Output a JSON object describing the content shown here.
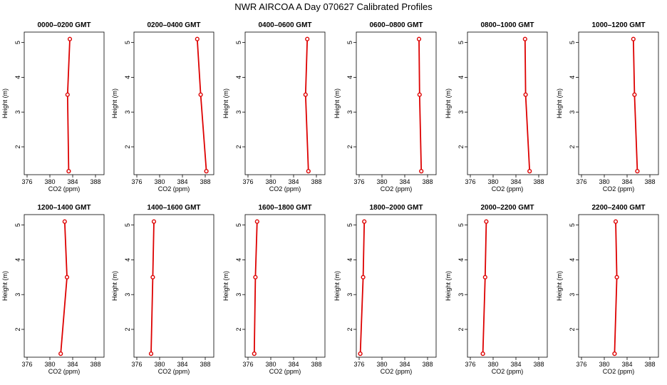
{
  "title": "NWR AIRCOA A  Day 070627  Calibrated Profiles",
  "chart_data": {
    "type": "line",
    "title": "NWR AIRCOA A  Day 070627  Calibrated Profiles",
    "xlabel": "CO2 (ppm)",
    "ylabel": "Height (m)",
    "xlim": [
      375.5,
      389.5
    ],
    "ylim": [
      1.2,
      5.3
    ],
    "xticks": [
      376,
      380,
      384,
      388
    ],
    "yticks": [
      2,
      3,
      4,
      5
    ],
    "series_color": "#dd0000",
    "panels": [
      {
        "name": "0000–0200 GMT",
        "points": [
          {
            "x": 383.3,
            "y": 1.3
          },
          {
            "x": 383.1,
            "y": 3.5
          },
          {
            "x": 383.5,
            "y": 5.1
          }
        ]
      },
      {
        "name": "0200–0400 GMT",
        "points": [
          {
            "x": 388.2,
            "y": 1.3
          },
          {
            "x": 387.2,
            "y": 3.5
          },
          {
            "x": 386.6,
            "y": 5.1
          }
        ]
      },
      {
        "name": "0400–0600 GMT",
        "points": [
          {
            "x": 386.6,
            "y": 1.3
          },
          {
            "x": 386.1,
            "y": 3.5
          },
          {
            "x": 386.4,
            "y": 5.1
          }
        ]
      },
      {
        "name": "0600–0800 GMT",
        "points": [
          {
            "x": 386.9,
            "y": 1.3
          },
          {
            "x": 386.6,
            "y": 3.5
          },
          {
            "x": 386.5,
            "y": 5.1
          }
        ]
      },
      {
        "name": "0800–1000 GMT",
        "points": [
          {
            "x": 386.4,
            "y": 1.3
          },
          {
            "x": 385.7,
            "y": 3.5
          },
          {
            "x": 385.6,
            "y": 5.1
          }
        ]
      },
      {
        "name": "1000–1200 GMT",
        "points": [
          {
            "x": 385.8,
            "y": 1.3
          },
          {
            "x": 385.3,
            "y": 3.5
          },
          {
            "x": 385.1,
            "y": 5.1
          }
        ]
      },
      {
        "name": "1200–1400 GMT",
        "points": [
          {
            "x": 381.9,
            "y": 1.3
          },
          {
            "x": 383.0,
            "y": 3.5
          },
          {
            "x": 382.6,
            "y": 5.1
          }
        ]
      },
      {
        "name": "1400–1600 GMT",
        "points": [
          {
            "x": 378.5,
            "y": 1.3
          },
          {
            "x": 378.8,
            "y": 3.5
          },
          {
            "x": 379.0,
            "y": 5.1
          }
        ]
      },
      {
        "name": "1600–1800 GMT",
        "points": [
          {
            "x": 377.1,
            "y": 1.3
          },
          {
            "x": 377.3,
            "y": 3.5
          },
          {
            "x": 377.6,
            "y": 5.1
          }
        ]
      },
      {
        "name": "1800–2000 GMT",
        "points": [
          {
            "x": 376.2,
            "y": 1.3
          },
          {
            "x": 376.7,
            "y": 3.5
          },
          {
            "x": 376.9,
            "y": 5.1
          }
        ]
      },
      {
        "name": "2000–2200 GMT",
        "points": [
          {
            "x": 378.2,
            "y": 1.3
          },
          {
            "x": 378.6,
            "y": 3.5
          },
          {
            "x": 378.8,
            "y": 5.1
          }
        ]
      },
      {
        "name": "2200–2400 GMT",
        "points": [
          {
            "x": 381.8,
            "y": 1.3
          },
          {
            "x": 382.2,
            "y": 3.5
          },
          {
            "x": 382.0,
            "y": 5.1
          }
        ]
      }
    ]
  }
}
